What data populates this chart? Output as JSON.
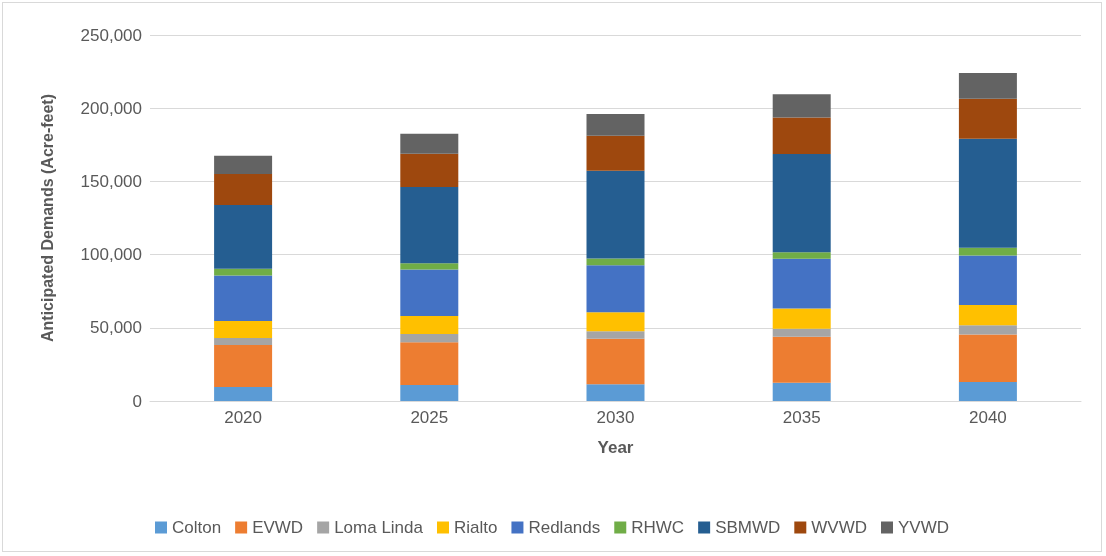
{
  "chart_data": {
    "type": "bar",
    "stacked": true,
    "xlabel": "Year",
    "ylabel": "Anticipated Demands (Acre-feet)",
    "categories": [
      "2020",
      "2025",
      "2030",
      "2035",
      "2040"
    ],
    "series": [
      {
        "name": "Colton",
        "color": "#5b9bd5",
        "values": [
          9500,
          10900,
          11400,
          12500,
          13000
        ]
      },
      {
        "name": "EVWD",
        "color": "#ed7d31",
        "values": [
          28700,
          29300,
          31100,
          31400,
          32500
        ]
      },
      {
        "name": "Loma Linda",
        "color": "#a5a5a5",
        "values": [
          4800,
          5500,
          5200,
          5500,
          6300
        ]
      },
      {
        "name": "Rialto",
        "color": "#ffc000",
        "values": [
          11600,
          12300,
          13000,
          13800,
          13700
        ]
      },
      {
        "name": "Redlands",
        "color": "#4472c4",
        "values": [
          31100,
          31800,
          32100,
          33900,
          33900
        ]
      },
      {
        "name": "RHWC",
        "color": "#70ad47",
        "values": [
          4600,
          4300,
          4500,
          4500,
          5200
        ]
      },
      {
        "name": "SBMWD",
        "color": "#255e91",
        "values": [
          43600,
          52100,
          60000,
          67100,
          74600
        ]
      },
      {
        "name": "WVWD",
        "color": "#9e480e",
        "values": [
          21200,
          22700,
          23900,
          25000,
          27200
        ]
      },
      {
        "name": "YVWD",
        "color": "#636363",
        "values": [
          12500,
          13700,
          14800,
          15900,
          17600
        ]
      }
    ],
    "ylim": [
      0,
      250000
    ],
    "yticks": [
      {
        "value": 0,
        "label": "0"
      },
      {
        "value": 50000,
        "label": "50,000"
      },
      {
        "value": 100000,
        "label": "100,000"
      },
      {
        "value": 150000,
        "label": "150,000"
      },
      {
        "value": 200000,
        "label": "200,000"
      },
      {
        "value": 250000,
        "label": "250,000"
      }
    ],
    "grid": "y",
    "legend": "bottom"
  }
}
